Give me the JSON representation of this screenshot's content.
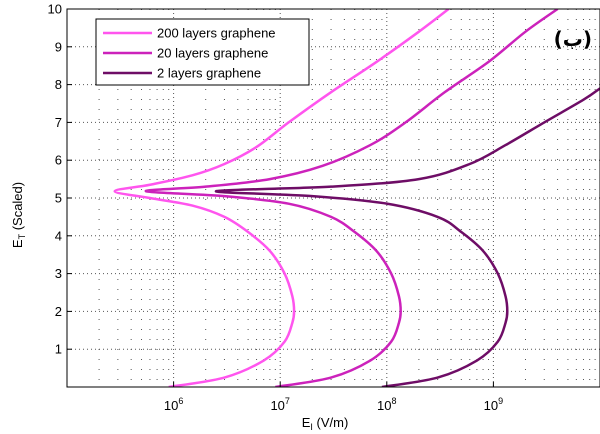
{
  "chart_data": {
    "type": "line",
    "title": "",
    "panel_label": "(ب)",
    "xlabel": "E",
    "xlabel_sub": "I",
    "xlabel_unit": " (V/m)",
    "ylabel": "E",
    "ylabel_sub": "T",
    "ylabel_unit": " (Scaled)",
    "xscale": "log",
    "xlim": [
      100000,
      10000000000
    ],
    "ylim": [
      0,
      10
    ],
    "x_ticks": [
      {
        "base": "10",
        "exp": "6",
        "value": 1000000
      },
      {
        "base": "10",
        "exp": "7",
        "value": 10000000
      },
      {
        "base": "10",
        "exp": "8",
        "value": 100000000
      },
      {
        "base": "10",
        "exp": "9",
        "value": 1000000000
      }
    ],
    "y_ticks": [
      "1",
      "2",
      "3",
      "4",
      "5",
      "6",
      "7",
      "8",
      "9",
      "10"
    ],
    "grid": "dotted",
    "legend_position": "top-left",
    "series": [
      {
        "name": "200 layers graphene",
        "color": "#ff55ee",
        "points": [
          [
            900000,
            0
          ],
          [
            3000000,
            0.25
          ],
          [
            7000000,
            0.7
          ],
          [
            11000000,
            1.2
          ],
          [
            13000000,
            1.7
          ],
          [
            13500000,
            2.0
          ],
          [
            13000000,
            2.4
          ],
          [
            11000000,
            3.0
          ],
          [
            8000000,
            3.6
          ],
          [
            5000000,
            4.1
          ],
          [
            3000000,
            4.5
          ],
          [
            1500000,
            4.8
          ],
          [
            600000,
            5.0
          ],
          [
            280000,
            5.18
          ],
          [
            600000,
            5.35
          ],
          [
            1500000,
            5.6
          ],
          [
            3000000,
            5.9
          ],
          [
            6000000,
            6.35
          ],
          [
            12000000,
            7.0
          ],
          [
            30000000,
            7.8
          ],
          [
            80000000,
            8.6
          ],
          [
            200000000,
            9.4
          ],
          [
            380000000,
            10
          ]
        ]
      },
      {
        "name": "20 layers graphene",
        "color": "#cc22bb",
        "points": [
          [
            9000000,
            0
          ],
          [
            30000000,
            0.25
          ],
          [
            70000000,
            0.7
          ],
          [
            110000000,
            1.2
          ],
          [
            130000000,
            1.7
          ],
          [
            135000000,
            2.0
          ],
          [
            130000000,
            2.4
          ],
          [
            110000000,
            3.0
          ],
          [
            80000000,
            3.6
          ],
          [
            50000000,
            4.1
          ],
          [
            30000000,
            4.5
          ],
          [
            12000000,
            4.85
          ],
          [
            3000000,
            5.05
          ],
          [
            550000,
            5.18
          ],
          [
            2000000,
            5.3
          ],
          [
            8000000,
            5.5
          ],
          [
            25000000,
            5.85
          ],
          [
            70000000,
            6.4
          ],
          [
            150000000,
            7.0
          ],
          [
            350000000,
            7.8
          ],
          [
            900000000,
            8.6
          ],
          [
            2000000000,
            9.4
          ],
          [
            4000000000,
            10
          ]
        ]
      },
      {
        "name": "2 layers graphene",
        "color": "#6e0d66",
        "points": [
          [
            90000000,
            0
          ],
          [
            300000000,
            0.25
          ],
          [
            700000000,
            0.7
          ],
          [
            1100000000,
            1.2
          ],
          [
            1300000000,
            1.7
          ],
          [
            1350000000,
            2.0
          ],
          [
            1300000000,
            2.4
          ],
          [
            1100000000,
            3.0
          ],
          [
            800000000,
            3.6
          ],
          [
            500000000,
            4.1
          ],
          [
            300000000,
            4.5
          ],
          [
            100000000,
            4.85
          ],
          [
            20000000,
            5.05
          ],
          [
            2500000,
            5.18
          ],
          [
            30000000,
            5.3
          ],
          [
            200000000,
            5.5
          ],
          [
            600000000,
            5.9
          ],
          [
            1300000000,
            6.4
          ],
          [
            3000000000,
            7.0
          ],
          [
            7000000000,
            7.6
          ],
          [
            10000000000,
            7.9
          ]
        ]
      }
    ]
  }
}
